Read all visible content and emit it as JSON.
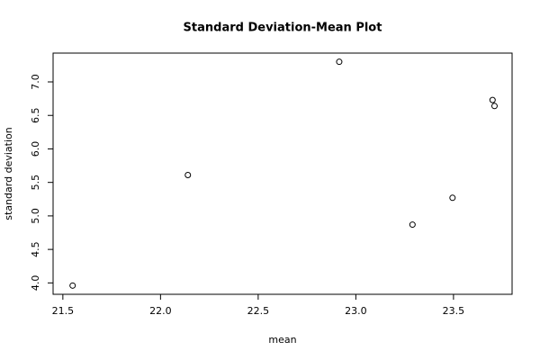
{
  "chart_data": {
    "type": "scatter",
    "title": "Standard Deviation-Mean Plot",
    "x_label": "mean",
    "y_label": "standard deviation",
    "x": [
      21.55,
      22.14,
      22.915,
      23.29,
      23.495,
      23.7,
      23.71
    ],
    "values": [
      3.96,
      5.61,
      7.3,
      4.87,
      5.27,
      6.73,
      6.64
    ],
    "color": "#000000",
    "xlim": [
      21.45,
      23.8
    ],
    "xticks": [
      21.5,
      {
        "value": 22,
        "label": "22.0"
      },
      22.5,
      {
        "value": 23,
        "label": "23.0"
      },
      23.5
    ],
    "ylim": [
      3.83,
      7.43
    ],
    "yticks": [
      {
        "value": 4,
        "label": "4.0"
      },
      4.5,
      {
        "value": 5,
        "label": "5.0"
      },
      5.5,
      {
        "value": 6,
        "label": "6.0"
      },
      6.5,
      {
        "value": 7,
        "label": "7.0"
      }
    ]
  }
}
